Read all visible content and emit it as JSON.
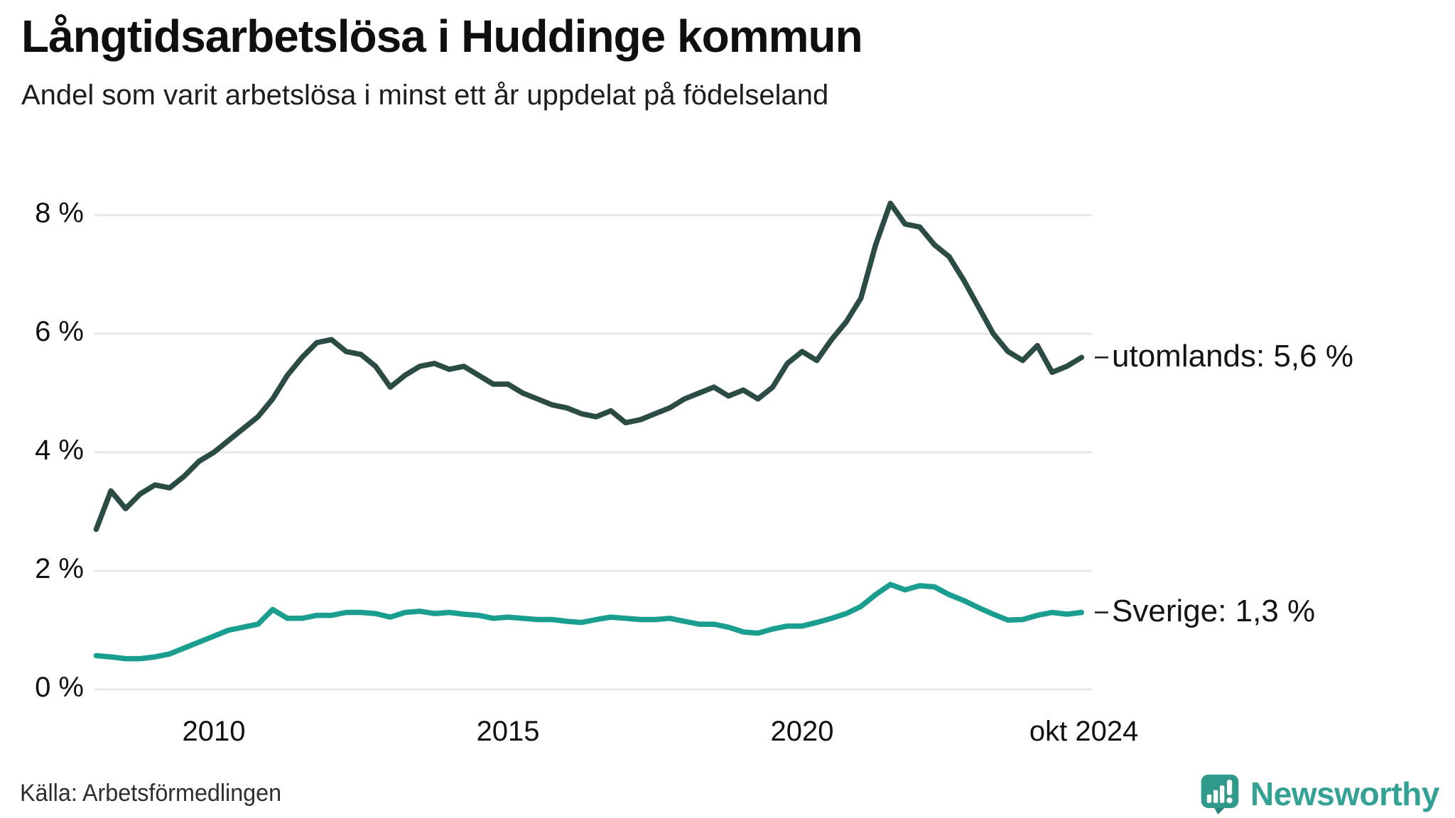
{
  "header": {
    "title": "Långtidsarbetslösa i Huddinge kommun",
    "subtitle": "Andel som varit arbetslösa i minst ett år uppdelat på födelseland"
  },
  "chart_data": {
    "type": "line",
    "title": "Långtidsarbetslösa i Huddinge kommun",
    "subtitle": "Andel som varit arbetslösa i minst ett år uppdelat på födelseland",
    "unit": "%",
    "grid": true,
    "gridline_color": "#e7e7eb",
    "legend_position": "end-of-line",
    "ylim": [
      0,
      8.6
    ],
    "xlim": [
      2008.0,
      2024.83
    ],
    "x_years": [
      2008.0,
      2008.25,
      2008.5,
      2008.75,
      2009.0,
      2009.25,
      2009.5,
      2009.75,
      2010.0,
      2010.25,
      2010.5,
      2010.75,
      2011.0,
      2011.25,
      2011.5,
      2011.75,
      2012.0,
      2012.25,
      2012.5,
      2012.75,
      2013.0,
      2013.25,
      2013.5,
      2013.75,
      2014.0,
      2014.25,
      2014.5,
      2014.75,
      2015.0,
      2015.25,
      2015.5,
      2015.75,
      2016.0,
      2016.25,
      2016.5,
      2016.75,
      2017.0,
      2017.25,
      2017.5,
      2017.75,
      2018.0,
      2018.25,
      2018.5,
      2018.75,
      2019.0,
      2019.25,
      2019.5,
      2019.75,
      2020.0,
      2020.25,
      2020.5,
      2020.75,
      2021.0,
      2021.25,
      2021.5,
      2021.75,
      2022.0,
      2022.25,
      2022.5,
      2022.75,
      2023.0,
      2023.25,
      2023.5,
      2023.75,
      2024.0,
      2024.25,
      2024.5,
      2024.75
    ],
    "series": [
      {
        "name": "utomlands",
        "label": "utomlands: 5,6 %",
        "last_value_text": "5,6 %",
        "color": "#2b4c44",
        "values": [
          2.7,
          3.35,
          3.05,
          3.3,
          3.45,
          3.4,
          3.6,
          3.85,
          4.0,
          4.2,
          4.4,
          4.6,
          4.9,
          5.3,
          5.6,
          5.85,
          5.9,
          5.7,
          5.65,
          5.45,
          5.1,
          5.3,
          5.45,
          5.5,
          5.4,
          5.45,
          5.3,
          5.15,
          5.15,
          5.0,
          4.9,
          4.8,
          4.75,
          4.65,
          4.6,
          4.7,
          4.5,
          4.55,
          4.65,
          4.75,
          4.9,
          5.0,
          5.1,
          4.95,
          5.05,
          4.9,
          5.1,
          5.5,
          5.7,
          5.55,
          5.9,
          6.2,
          6.6,
          7.5,
          8.2,
          7.85,
          7.8,
          7.5,
          7.3,
          6.9,
          6.45,
          6.0,
          5.7,
          5.55,
          5.8,
          5.35,
          5.45,
          5.6
        ]
      },
      {
        "name": "Sverige",
        "label": "Sverige: 1,3 %",
        "last_value_text": "1,3 %",
        "color": "#1a9e90",
        "values": [
          0.57,
          0.55,
          0.52,
          0.52,
          0.55,
          0.6,
          0.7,
          0.8,
          0.9,
          1.0,
          1.05,
          1.1,
          1.35,
          1.2,
          1.2,
          1.25,
          1.25,
          1.3,
          1.3,
          1.28,
          1.22,
          1.3,
          1.32,
          1.28,
          1.3,
          1.27,
          1.25,
          1.2,
          1.22,
          1.2,
          1.18,
          1.18,
          1.15,
          1.13,
          1.18,
          1.22,
          1.2,
          1.18,
          1.18,
          1.2,
          1.15,
          1.1,
          1.1,
          1.05,
          0.97,
          0.95,
          1.02,
          1.07,
          1.07,
          1.13,
          1.2,
          1.28,
          1.4,
          1.6,
          1.77,
          1.68,
          1.75,
          1.73,
          1.6,
          1.5,
          1.38,
          1.27,
          1.17,
          1.18,
          1.25,
          1.3,
          1.27,
          1.3
        ]
      }
    ],
    "yticks": [
      {
        "label": "0 %",
        "value": 0
      },
      {
        "label": "2 %",
        "value": 2
      },
      {
        "label": "4 %",
        "value": 4
      },
      {
        "label": "6 %",
        "value": 6
      },
      {
        "label": "8 %",
        "value": 8
      }
    ],
    "xticks": [
      {
        "label": "2010",
        "year": 2010
      },
      {
        "label": "2015",
        "year": 2015
      },
      {
        "label": "2020",
        "year": 2020
      },
      {
        "label": "okt 2024",
        "year": 2024.79
      }
    ]
  },
  "footer": {
    "source": "Källa: Arbetsförmedlingen",
    "brand": "Newsworthy",
    "brand_color": "#33a295",
    "logo_color": "#2f998c",
    "logo_tail_color": "#26857a"
  }
}
